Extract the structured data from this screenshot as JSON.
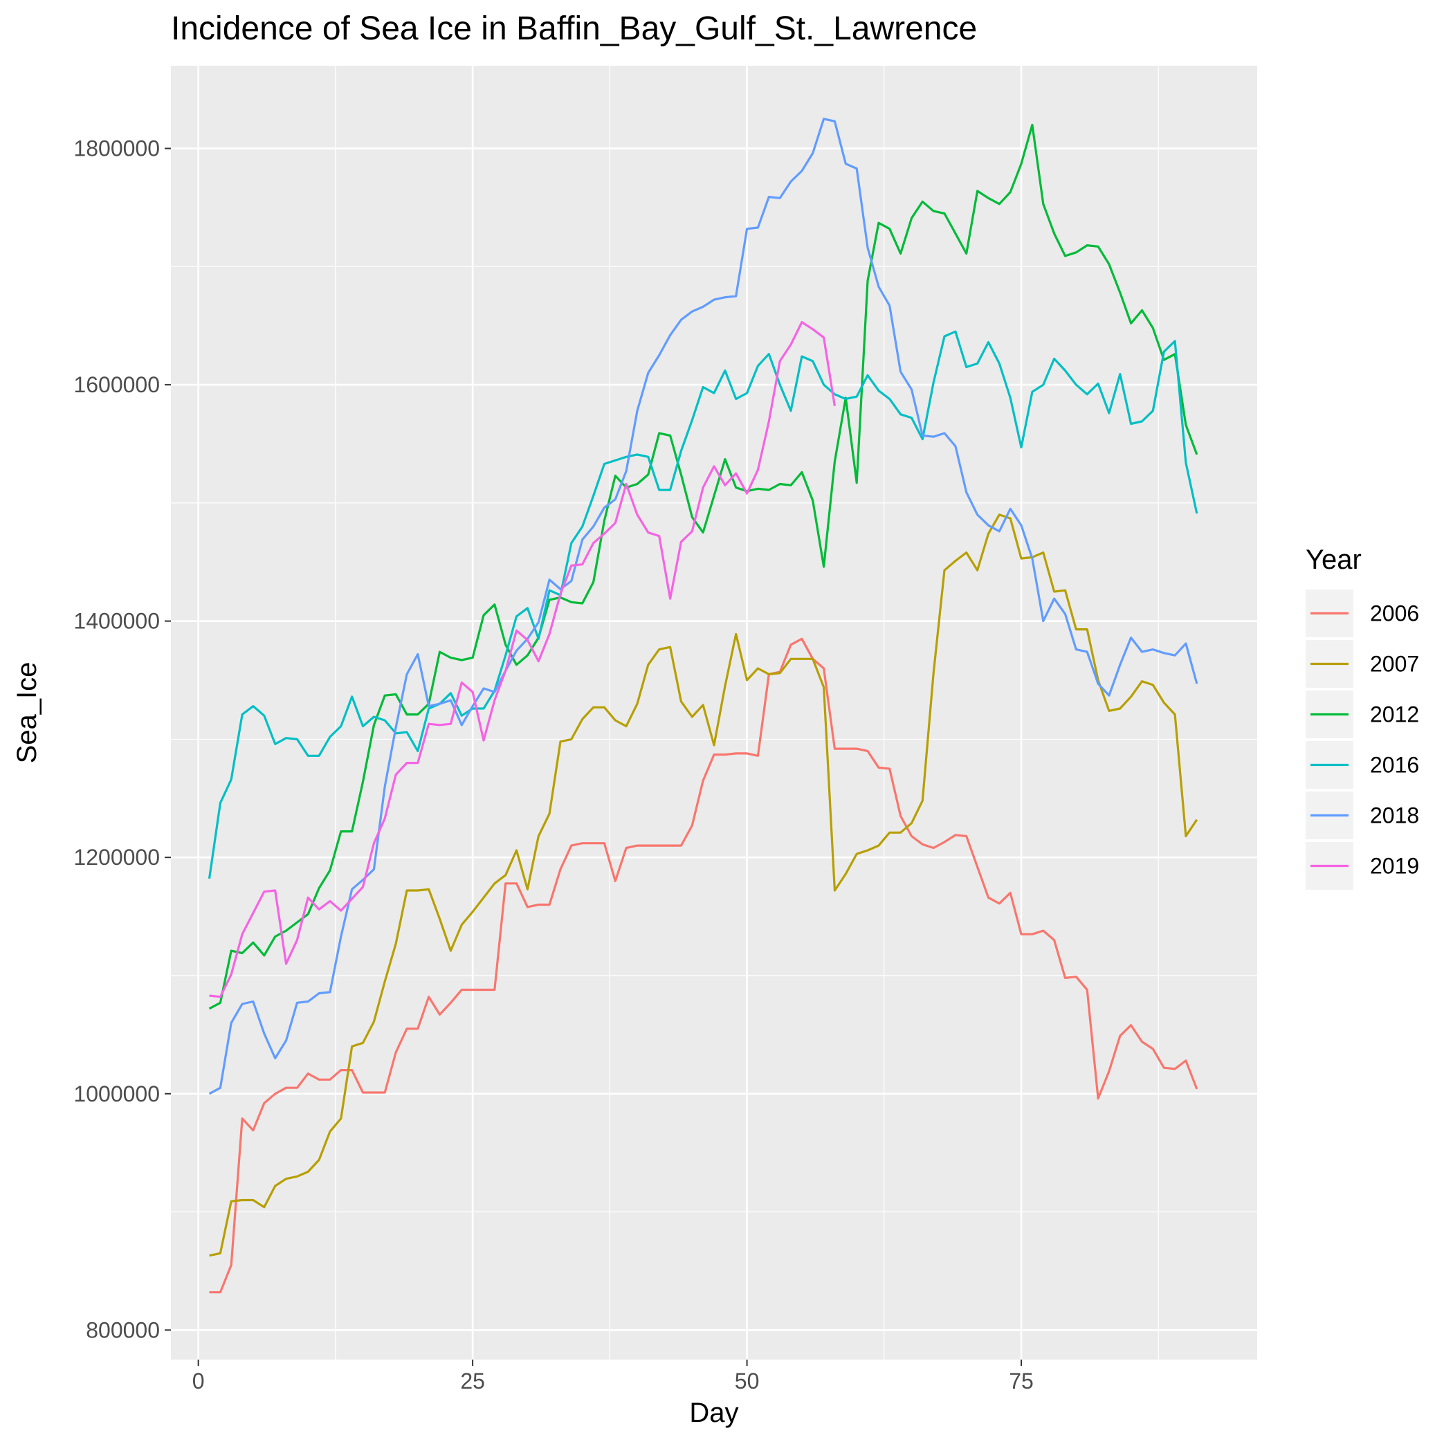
{
  "chart_data": {
    "type": "line",
    "title": "Incidence of Sea Ice in Baffin_Bay_Gulf_St._Lawrence",
    "xlabel": "Day",
    "ylabel": "Sea_Ice",
    "xlim": [
      -2.5,
      96.5
    ],
    "ylim": [
      775000,
      1870000
    ],
    "x_ticks": [
      0,
      25,
      50,
      75
    ],
    "x_tick_labels": [
      "0",
      "25",
      "50",
      "75"
    ],
    "y_ticks": [
      800000,
      1000000,
      1200000,
      1400000,
      1600000,
      1800000
    ],
    "y_tick_labels": [
      "800000",
      "1000000",
      "1200000",
      "1400000",
      "1600000",
      "1800000"
    ],
    "grid": true,
    "legend": {
      "title": "Year",
      "position": "right"
    },
    "series": [
      {
        "name": "2006",
        "color": "#F8766D",
        "x": [
          1,
          2,
          3,
          4,
          5,
          6,
          7,
          8,
          9,
          10,
          11,
          12,
          13,
          14,
          15,
          16,
          17,
          18,
          19,
          20,
          21,
          22,
          23,
          24,
          25,
          26,
          27,
          28,
          29,
          30,
          31,
          32,
          33,
          34,
          35,
          36,
          37,
          38,
          39,
          40,
          41,
          42,
          43,
          44,
          45,
          46,
          47,
          48,
          49,
          50,
          51,
          52,
          53,
          54,
          55,
          56,
          57,
          58,
          59,
          60,
          61,
          62,
          63,
          64,
          65,
          66,
          67,
          68,
          69,
          70,
          71,
          72,
          73,
          74,
          75,
          76,
          77,
          78,
          79,
          80,
          81,
          82,
          83,
          84,
          85,
          86,
          87,
          88,
          89,
          90,
          91
        ],
        "values": [
          832000,
          832000,
          855000,
          979000,
          969000,
          992000,
          1000000,
          1005000,
          1005000,
          1017000,
          1012000,
          1012000,
          1020000,
          1020000,
          1001000,
          1001000,
          1001000,
          1035000,
          1055000,
          1055000,
          1082000,
          1067000,
          1077000,
          1088000,
          1088000,
          1088000,
          1088000,
          1178000,
          1178000,
          1158000,
          1160000,
          1160000,
          1190000,
          1210000,
          1212000,
          1212000,
          1212000,
          1180000,
          1208000,
          1210000,
          1210000,
          1210000,
          1210000,
          1210000,
          1227000,
          1265000,
          1287000,
          1287000,
          1288000,
          1288000,
          1286000,
          1355000,
          1357000,
          1380000,
          1385000,
          1368000,
          1360000,
          1292000,
          1292000,
          1292000,
          1290000,
          1276000,
          1275000,
          1235000,
          1218000,
          1211000,
          1208000,
          1213000,
          1219000,
          1218000,
          1192000,
          1166000,
          1161000,
          1170000,
          1135000,
          1135000,
          1138000,
          1130000,
          1098000,
          1099000,
          1088000,
          996000,
          1019000,
          1049000,
          1058000,
          1044000,
          1038000,
          1022000,
          1021000,
          1028000,
          1004000
        ]
      },
      {
        "name": "2007",
        "color": "#B79F00",
        "x": [
          1,
          2,
          3,
          4,
          5,
          6,
          7,
          8,
          9,
          10,
          11,
          12,
          13,
          14,
          15,
          16,
          17,
          18,
          19,
          20,
          21,
          22,
          23,
          24,
          25,
          26,
          27,
          28,
          29,
          30,
          31,
          32,
          33,
          34,
          35,
          36,
          37,
          38,
          39,
          40,
          41,
          42,
          43,
          44,
          45,
          46,
          47,
          48,
          49,
          50,
          51,
          52,
          53,
          54,
          55,
          56,
          57,
          58,
          59,
          60,
          61,
          62,
          63,
          64,
          65,
          66,
          67,
          68,
          69,
          70,
          71,
          72,
          73,
          74,
          75,
          76,
          77,
          78,
          79,
          80,
          81,
          82,
          83,
          84,
          85,
          86,
          87,
          88,
          89,
          90,
          91
        ],
        "values": [
          863000,
          865000,
          909000,
          910000,
          910000,
          904000,
          922000,
          928000,
          930000,
          934000,
          944000,
          968000,
          979000,
          1040000,
          1043000,
          1061000,
          1095000,
          1127000,
          1172000,
          1172000,
          1173000,
          1148000,
          1121000,
          1143000,
          1154000,
          1166000,
          1178000,
          1185000,
          1206000,
          1173000,
          1218000,
          1237000,
          1298000,
          1300000,
          1317000,
          1327000,
          1327000,
          1316000,
          1311000,
          1330000,
          1363000,
          1376000,
          1378000,
          1332000,
          1319000,
          1329000,
          1295000,
          1345000,
          1389000,
          1350000,
          1360000,
          1355000,
          1356000,
          1368000,
          1368000,
          1368000,
          1344000,
          1172000,
          1186000,
          1203000,
          1206000,
          1210000,
          1221000,
          1221000,
          1229000,
          1248000,
          1356000,
          1443000,
          1451000,
          1458000,
          1443000,
          1474000,
          1490000,
          1487000,
          1453000,
          1454000,
          1458000,
          1425000,
          1426000,
          1393000,
          1393000,
          1350000,
          1324000,
          1326000,
          1336000,
          1349000,
          1346000,
          1331000,
          1321000,
          1218000,
          1232000
        ]
      },
      {
        "name": "2012",
        "color": "#00BA38",
        "x": [
          1,
          2,
          3,
          4,
          5,
          6,
          7,
          8,
          9,
          10,
          11,
          12,
          13,
          14,
          15,
          16,
          17,
          18,
          19,
          20,
          21,
          22,
          23,
          24,
          25,
          26,
          27,
          28,
          29,
          30,
          31,
          32,
          33,
          34,
          35,
          36,
          37,
          38,
          39,
          40,
          41,
          42,
          43,
          44,
          45,
          46,
          47,
          48,
          49,
          50,
          51,
          52,
          53,
          54,
          55,
          56,
          57,
          58,
          59,
          60,
          61,
          62,
          63,
          64,
          65,
          66,
          67,
          68,
          69,
          70,
          71,
          72,
          73,
          74,
          75,
          76,
          77,
          78,
          79,
          80,
          81,
          82,
          83,
          84,
          85,
          86,
          87,
          88,
          89,
          90,
          91
        ],
        "values": [
          1072000,
          1077000,
          1121000,
          1119000,
          1128000,
          1117000,
          1133000,
          1138000,
          1145000,
          1152000,
          1174000,
          1189000,
          1222000,
          1222000,
          1264000,
          1312000,
          1337000,
          1338000,
          1321000,
          1321000,
          1330000,
          1374000,
          1369000,
          1367000,
          1369000,
          1405000,
          1414000,
          1380000,
          1363000,
          1371000,
          1386000,
          1418000,
          1420000,
          1416000,
          1415000,
          1433000,
          1485000,
          1523000,
          1513000,
          1516000,
          1524000,
          1559000,
          1557000,
          1524000,
          1488000,
          1475000,
          1506000,
          1537000,
          1513000,
          1510000,
          1512000,
          1511000,
          1516000,
          1515000,
          1526000,
          1502000,
          1446000,
          1535000,
          1589000,
          1517000,
          1688000,
          1737000,
          1732000,
          1711000,
          1741000,
          1755000,
          1747000,
          1745000,
          1728000,
          1711000,
          1764000,
          1758000,
          1753000,
          1763000,
          1787000,
          1820000,
          1753000,
          1728000,
          1709000,
          1712000,
          1718000,
          1717000,
          1702000,
          1678000,
          1652000,
          1663000,
          1648000,
          1621000,
          1626000,
          1566000,
          1541000
        ]
      },
      {
        "name": "2016",
        "color": "#00BFC4",
        "x": [
          1,
          2,
          3,
          4,
          5,
          6,
          7,
          8,
          9,
          10,
          11,
          12,
          13,
          14,
          15,
          16,
          17,
          18,
          19,
          20,
          21,
          22,
          23,
          24,
          25,
          26,
          27,
          28,
          29,
          30,
          31,
          32,
          33,
          34,
          35,
          36,
          37,
          38,
          39,
          40,
          41,
          42,
          43,
          44,
          45,
          46,
          47,
          48,
          49,
          50,
          51,
          52,
          53,
          54,
          55,
          56,
          57,
          58,
          59,
          60,
          61,
          62,
          63,
          64,
          65,
          66,
          67,
          68,
          69,
          70,
          71,
          72,
          73,
          74,
          75,
          76,
          77,
          78,
          79,
          80,
          81,
          82,
          83,
          84,
          85,
          86,
          87,
          88,
          89,
          90,
          91
        ],
        "values": [
          1182000,
          1246000,
          1266000,
          1321000,
          1328000,
          1320000,
          1296000,
          1301000,
          1300000,
          1286000,
          1286000,
          1302000,
          1311000,
          1336000,
          1311000,
          1319000,
          1316000,
          1305000,
          1306000,
          1290000,
          1326000,
          1330000,
          1339000,
          1320000,
          1326000,
          1326000,
          1341000,
          1371000,
          1404000,
          1411000,
          1385000,
          1426000,
          1422000,
          1466000,
          1480000,
          1506000,
          1533000,
          1536000,
          1539000,
          1541000,
          1539000,
          1511000,
          1511000,
          1544000,
          1570000,
          1598000,
          1593000,
          1612000,
          1588000,
          1593000,
          1616000,
          1626000,
          1600000,
          1578000,
          1624000,
          1620000,
          1600000,
          1592000,
          1588000,
          1590000,
          1608000,
          1595000,
          1588000,
          1575000,
          1572000,
          1554000,
          1602000,
          1641000,
          1645000,
          1615000,
          1618000,
          1636000,
          1618000,
          1589000,
          1547000,
          1594000,
          1600000,
          1622000,
          1612000,
          1600000,
          1592000,
          1601000,
          1576000,
          1609000,
          1567000,
          1569000,
          1578000,
          1628000,
          1637000,
          1534000,
          1491000
        ]
      },
      {
        "name": "2018",
        "color": "#619CFF",
        "x": [
          1,
          2,
          3,
          4,
          5,
          6,
          7,
          8,
          9,
          10,
          11,
          12,
          13,
          14,
          15,
          16,
          17,
          18,
          19,
          20,
          21,
          22,
          23,
          24,
          25,
          26,
          27,
          28,
          29,
          30,
          31,
          32,
          33,
          34,
          35,
          36,
          37,
          38,
          39,
          40,
          41,
          42,
          43,
          44,
          45,
          46,
          47,
          48,
          49,
          50,
          51,
          52,
          53,
          54,
          55,
          56,
          57,
          58,
          59,
          60,
          61,
          62,
          63,
          64,
          65,
          66,
          67,
          68,
          69,
          70,
          71,
          72,
          73,
          74,
          75,
          76,
          77,
          78,
          79,
          80,
          81,
          82,
          83,
          84,
          85,
          86,
          87,
          88,
          89,
          90,
          91
        ],
        "values": [
          1000000,
          1005000,
          1060000,
          1076000,
          1078000,
          1051000,
          1030000,
          1045000,
          1077000,
          1078000,
          1085000,
          1086000,
          1133000,
          1173000,
          1181000,
          1190000,
          1260000,
          1310000,
          1355000,
          1372000,
          1328000,
          1330000,
          1333000,
          1312000,
          1328000,
          1343000,
          1340000,
          1358000,
          1375000,
          1385000,
          1399000,
          1435000,
          1427000,
          1434000,
          1469000,
          1480000,
          1496000,
          1503000,
          1527000,
          1578000,
          1610000,
          1625000,
          1642000,
          1655000,
          1662000,
          1666000,
          1672000,
          1674000,
          1675000,
          1732000,
          1733000,
          1759000,
          1758000,
          1772000,
          1781000,
          1796000,
          1825000,
          1823000,
          1787000,
          1783000,
          1716000,
          1683000,
          1667000,
          1611000,
          1596000,
          1557000,
          1556000,
          1559000,
          1548000,
          1509000,
          1490000,
          1481000,
          1476000,
          1495000,
          1481000,
          1453000,
          1400000,
          1419000,
          1406000,
          1376000,
          1374000,
          1347000,
          1337000,
          1363000,
          1386000,
          1374000,
          1376000,
          1373000,
          1371000,
          1381000,
          1347000
        ]
      },
      {
        "name": "2019",
        "color": "#F564E3",
        "x": [
          1,
          2,
          3,
          4,
          5,
          6,
          7,
          8,
          9,
          10,
          11,
          12,
          13,
          14,
          15,
          16,
          17,
          18,
          19,
          20,
          21,
          22,
          23,
          24,
          25,
          26,
          27,
          28,
          29,
          30,
          31,
          32,
          33,
          34,
          35,
          36,
          37,
          38,
          39,
          40,
          41,
          42,
          43,
          44,
          45,
          46,
          47,
          48,
          49,
          50,
          51,
          52,
          53,
          54,
          55,
          56,
          57,
          58
        ],
        "values": [
          1083000,
          1082000,
          1101000,
          1135000,
          1153000,
          1171000,
          1172000,
          1110000,
          1130000,
          1166000,
          1156000,
          1163000,
          1155000,
          1165000,
          1175000,
          1212000,
          1233000,
          1270000,
          1280000,
          1280000,
          1313000,
          1312000,
          1313000,
          1348000,
          1340000,
          1299000,
          1333000,
          1358000,
          1392000,
          1384000,
          1366000,
          1389000,
          1423000,
          1447000,
          1448000,
          1466000,
          1474000,
          1483000,
          1516000,
          1490000,
          1475000,
          1472000,
          1419000,
          1467000,
          1476000,
          1513000,
          1531000,
          1515000,
          1525000,
          1508000,
          1528000,
          1569000,
          1620000,
          1634000,
          1653000,
          1647000,
          1640000,
          1582000
        ]
      }
    ]
  }
}
